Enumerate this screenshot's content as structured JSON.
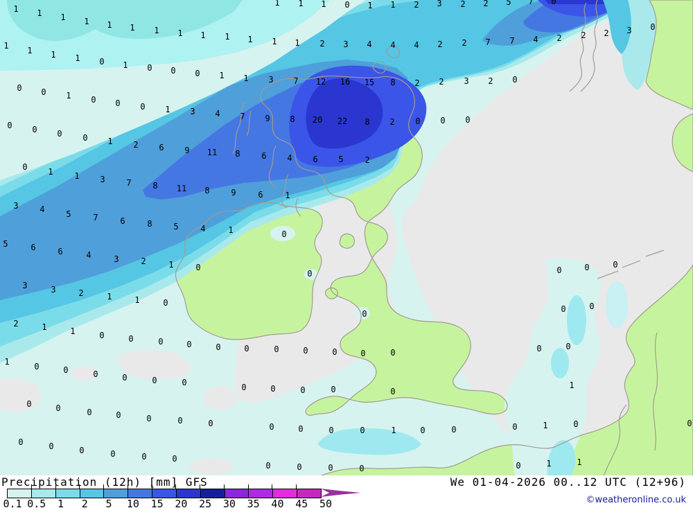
{
  "footer": {
    "title": "Precipitation (12h) [mm] GFS",
    "datetime": "We 01-04-2026 00..12 UTC (12+96)",
    "copyright": "©weatheronline.co.uk",
    "legend_labels": [
      "0.1",
      "0.5",
      "1",
      "2",
      "5",
      "10",
      "15",
      "20",
      "25",
      "30",
      "35",
      "40",
      "45",
      "50"
    ]
  },
  "palette": {
    "bands": [
      "#d7f3ef",
      "#a9e9ec",
      "#7bdce9",
      "#55c6e4",
      "#4f9fdb",
      "#4577e2",
      "#3a55e8",
      "#2a36cf",
      "#141f9f",
      "#8c26e0",
      "#ae2ae6",
      "#e52ae0",
      "#c926c0"
    ],
    "corner_band05": "#aef2f2",
    "corner_band1": "#8fe6e3",
    "teal_patch": "#9ee9ef",
    "nl_patch": "#c9f0f2",
    "arrow": "#993399",
    "sea_none": "#e9e9e9",
    "land_none": "#c6f49e",
    "coastline": "#a39a92",
    "value_text": "#000000",
    "copyright_color": "#1a1a99"
  },
  "map": {
    "values": [
      [
        400,
        4,
        "1"
      ],
      [
        434,
        5,
        "1"
      ],
      [
        467,
        6,
        "1"
      ],
      [
        501,
        7,
        "0"
      ],
      [
        534,
        8,
        "1"
      ],
      [
        567,
        7,
        "1"
      ],
      [
        601,
        7,
        "2"
      ],
      [
        634,
        5,
        "3"
      ],
      [
        668,
        6,
        "2"
      ],
      [
        701,
        5,
        "2"
      ],
      [
        734,
        3,
        "5"
      ],
      [
        766,
        2,
        "7"
      ],
      [
        799,
        2,
        "0"
      ],
      [
        23,
        13,
        "1"
      ],
      [
        57,
        19,
        "1"
      ],
      [
        91,
        25,
        "1"
      ],
      [
        125,
        31,
        "1"
      ],
      [
        158,
        36,
        "1"
      ],
      [
        191,
        40,
        "1"
      ],
      [
        226,
        44,
        "1"
      ],
      [
        260,
        48,
        "1"
      ],
      [
        293,
        51,
        "1"
      ],
      [
        328,
        53,
        "1"
      ],
      [
        361,
        57,
        "1"
      ],
      [
        396,
        60,
        "1"
      ],
      [
        429,
        62,
        "1"
      ],
      [
        465,
        63,
        "2"
      ],
      [
        499,
        64,
        "3"
      ],
      [
        533,
        64,
        "4"
      ],
      [
        567,
        65,
        "4"
      ],
      [
        601,
        65,
        "4"
      ],
      [
        635,
        64,
        "2"
      ],
      [
        670,
        62,
        "2"
      ],
      [
        704,
        61,
        "7"
      ],
      [
        739,
        59,
        "7"
      ],
      [
        773,
        57,
        "4"
      ],
      [
        807,
        55,
        "2"
      ],
      [
        842,
        51,
        "2"
      ],
      [
        875,
        48,
        "2"
      ],
      [
        908,
        44,
        "3"
      ],
      [
        942,
        39,
        "0"
      ],
      [
        9,
        66,
        "1"
      ],
      [
        43,
        73,
        "1"
      ],
      [
        77,
        79,
        "1"
      ],
      [
        112,
        84,
        "1"
      ],
      [
        147,
        89,
        "0"
      ],
      [
        181,
        94,
        "1"
      ],
      [
        216,
        98,
        "0"
      ],
      [
        250,
        102,
        "0"
      ],
      [
        285,
        106,
        "0"
      ],
      [
        320,
        109,
        "1"
      ],
      [
        28,
        127,
        "0"
      ],
      [
        63,
        133,
        "0"
      ],
      [
        99,
        138,
        "1"
      ],
      [
        135,
        144,
        "0"
      ],
      [
        170,
        149,
        "0"
      ],
      [
        206,
        154,
        "0"
      ],
      [
        242,
        158,
        "1"
      ],
      [
        278,
        161,
        "3"
      ],
      [
        314,
        164,
        "4"
      ],
      [
        355,
        113,
        "1"
      ],
      [
        391,
        115,
        "3"
      ],
      [
        427,
        117,
        "7"
      ],
      [
        463,
        118,
        "12"
      ],
      [
        498,
        118,
        "16"
      ],
      [
        533,
        119,
        "15"
      ],
      [
        567,
        119,
        "8"
      ],
      [
        602,
        120,
        "2"
      ],
      [
        637,
        118,
        "2"
      ],
      [
        673,
        117,
        "3"
      ],
      [
        708,
        117,
        "2"
      ],
      [
        743,
        115,
        "0"
      ],
      [
        14,
        181,
        "0"
      ],
      [
        50,
        187,
        "0"
      ],
      [
        86,
        193,
        "0"
      ],
      [
        123,
        199,
        "0"
      ],
      [
        159,
        204,
        "1"
      ],
      [
        196,
        209,
        "2"
      ],
      [
        233,
        213,
        "6"
      ],
      [
        270,
        217,
        "9"
      ],
      [
        306,
        220,
        "11"
      ],
      [
        350,
        168,
        "7"
      ],
      [
        386,
        171,
        "9"
      ],
      [
        422,
        172,
        "8"
      ],
      [
        458,
        173,
        "20"
      ],
      [
        494,
        175,
        "22"
      ],
      [
        530,
        176,
        "8"
      ],
      [
        566,
        176,
        "2"
      ],
      [
        603,
        175,
        "0"
      ],
      [
        639,
        174,
        "0"
      ],
      [
        675,
        173,
        "0"
      ],
      [
        343,
        222,
        "8"
      ],
      [
        381,
        225,
        "6"
      ],
      [
        418,
        228,
        "4"
      ],
      [
        455,
        230,
        "6"
      ],
      [
        492,
        230,
        "5"
      ],
      [
        530,
        231,
        "2"
      ],
      [
        36,
        241,
        "0"
      ],
      [
        73,
        248,
        "1"
      ],
      [
        111,
        254,
        "1"
      ],
      [
        148,
        259,
        "3"
      ],
      [
        186,
        264,
        "7"
      ],
      [
        224,
        268,
        "8"
      ],
      [
        262,
        272,
        "11"
      ],
      [
        299,
        275,
        "8"
      ],
      [
        337,
        278,
        "9"
      ],
      [
        376,
        281,
        "6"
      ],
      [
        415,
        282,
        "1"
      ],
      [
        23,
        297,
        "3"
      ],
      [
        61,
        302,
        "4"
      ],
      [
        99,
        309,
        "5"
      ],
      [
        138,
        314,
        "7"
      ],
      [
        177,
        319,
        "6"
      ],
      [
        216,
        323,
        "8"
      ],
      [
        254,
        327,
        "5"
      ],
      [
        293,
        330,
        "4"
      ],
      [
        333,
        332,
        "1"
      ],
      [
        8,
        352,
        "5"
      ],
      [
        48,
        357,
        "6"
      ],
      [
        87,
        363,
        "6"
      ],
      [
        128,
        368,
        "4"
      ],
      [
        168,
        374,
        "3"
      ],
      [
        207,
        377,
        "2"
      ],
      [
        247,
        382,
        "1"
      ],
      [
        286,
        386,
        "0"
      ],
      [
        410,
        338,
        "0"
      ],
      [
        447,
        395,
        "0"
      ],
      [
        807,
        390,
        "0"
      ],
      [
        847,
        386,
        "0"
      ],
      [
        888,
        382,
        "0"
      ],
      [
        36,
        412,
        "3"
      ],
      [
        77,
        418,
        "3"
      ],
      [
        117,
        423,
        "2"
      ],
      [
        158,
        428,
        "1"
      ],
      [
        198,
        433,
        "1"
      ],
      [
        239,
        437,
        "0"
      ],
      [
        813,
        446,
        "0"
      ],
      [
        854,
        442,
        "0"
      ],
      [
        526,
        453,
        "0"
      ],
      [
        23,
        467,
        "2"
      ],
      [
        64,
        472,
        "1"
      ],
      [
        105,
        478,
        "1"
      ],
      [
        147,
        484,
        "0"
      ],
      [
        189,
        489,
        "0"
      ],
      [
        232,
        493,
        "0"
      ],
      [
        273,
        497,
        "0"
      ],
      [
        315,
        501,
        "0"
      ],
      [
        356,
        503,
        "0"
      ],
      [
        399,
        504,
        "0"
      ],
      [
        441,
        506,
        "0"
      ],
      [
        483,
        508,
        "0"
      ],
      [
        524,
        510,
        "0"
      ],
      [
        567,
        509,
        "0"
      ],
      [
        778,
        503,
        "0"
      ],
      [
        820,
        500,
        "0"
      ],
      [
        10,
        522,
        "1"
      ],
      [
        53,
        529,
        "0"
      ],
      [
        95,
        534,
        "0"
      ],
      [
        138,
        540,
        "0"
      ],
      [
        180,
        545,
        "0"
      ],
      [
        223,
        549,
        "0"
      ],
      [
        266,
        552,
        "0"
      ],
      [
        352,
        559,
        "0"
      ],
      [
        394,
        561,
        "0"
      ],
      [
        437,
        563,
        "0"
      ],
      [
        481,
        562,
        "0"
      ],
      [
        567,
        565,
        "0"
      ],
      [
        825,
        556,
        "1"
      ],
      [
        42,
        583,
        "0"
      ],
      [
        84,
        589,
        "0"
      ],
      [
        129,
        595,
        "0"
      ],
      [
        171,
        599,
        "0"
      ],
      [
        215,
        604,
        "0"
      ],
      [
        260,
        607,
        "0"
      ],
      [
        304,
        611,
        "0"
      ],
      [
        392,
        616,
        "0"
      ],
      [
        434,
        619,
        "0"
      ],
      [
        478,
        621,
        "0"
      ],
      [
        523,
        621,
        "0"
      ],
      [
        568,
        621,
        "1"
      ],
      [
        610,
        621,
        "0"
      ],
      [
        655,
        620,
        "0"
      ],
      [
        743,
        616,
        "0"
      ],
      [
        787,
        614,
        "1"
      ],
      [
        831,
        612,
        "0"
      ],
      [
        995,
        611,
        "0"
      ],
      [
        30,
        638,
        "0"
      ],
      [
        74,
        644,
        "0"
      ],
      [
        118,
        650,
        "0"
      ],
      [
        163,
        655,
        "0"
      ],
      [
        208,
        659,
        "0"
      ],
      [
        252,
        662,
        "0"
      ],
      [
        387,
        672,
        "0"
      ],
      [
        432,
        674,
        "0"
      ],
      [
        477,
        675,
        "0"
      ],
      [
        522,
        676,
        "0"
      ],
      [
        748,
        672,
        "0"
      ],
      [
        792,
        669,
        "1"
      ],
      [
        836,
        667,
        "1"
      ]
    ]
  }
}
